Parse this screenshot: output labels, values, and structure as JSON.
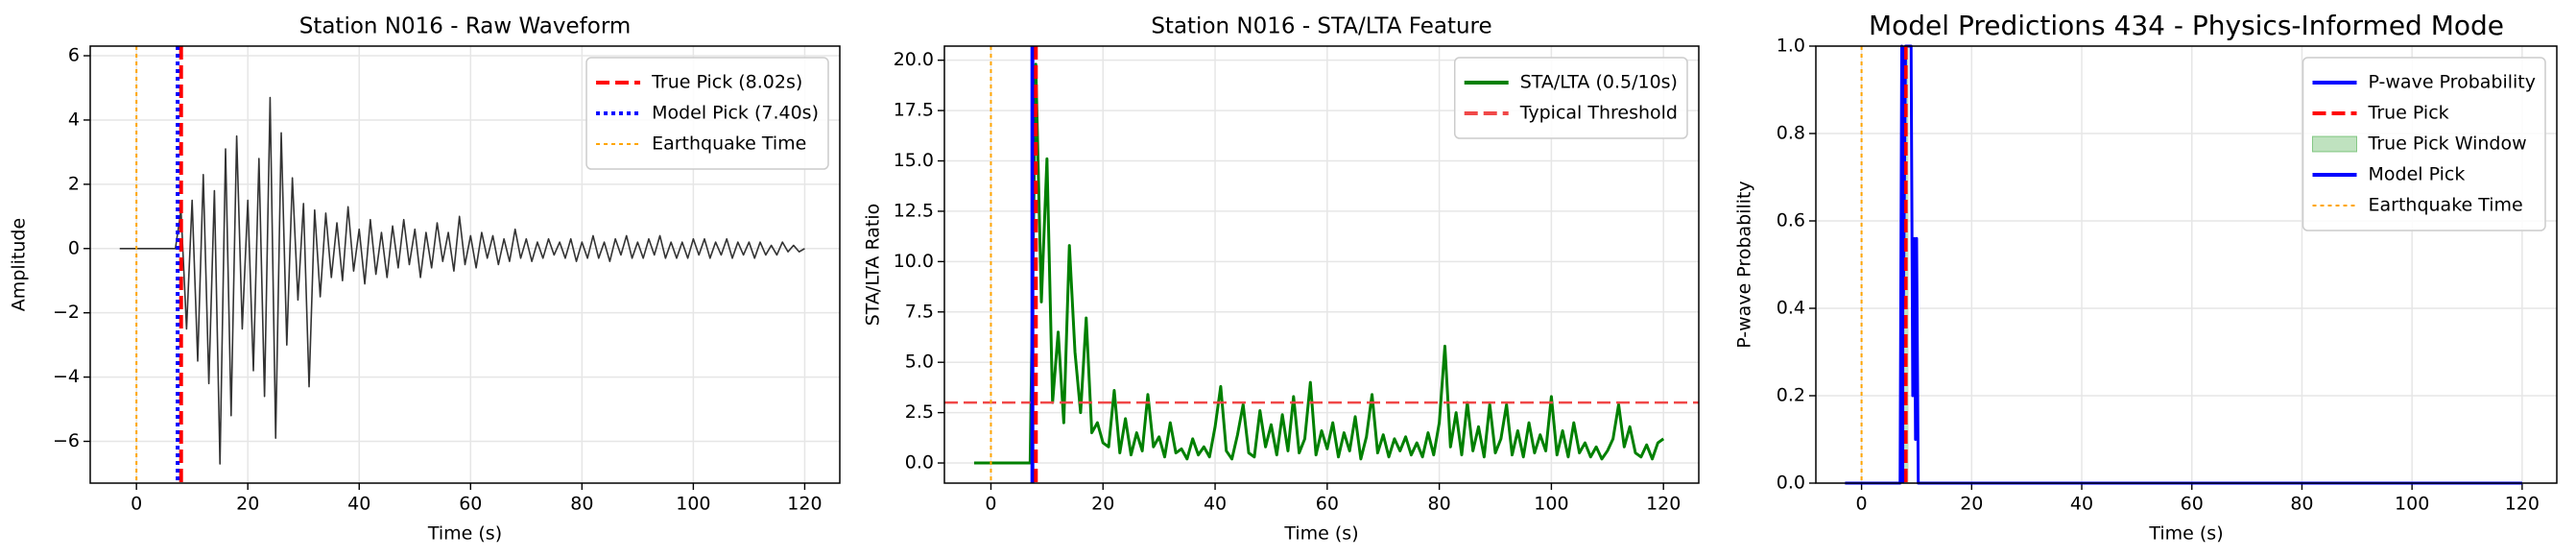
{
  "chart_data": [
    {
      "type": "line",
      "title": "Station N016 - Raw Waveform",
      "xlabel": "Time (s)",
      "ylabel": "Amplitude",
      "xlim": [
        -8.3,
        126.3
      ],
      "ylim": [
        -7.3,
        6.3
      ],
      "xticks": [
        0,
        20,
        40,
        60,
        80,
        100,
        120
      ],
      "yticks": [
        {
          "value": -6,
          "label": "−6"
        },
        {
          "value": -4,
          "label": "−4"
        },
        {
          "value": -2,
          "label": "−2"
        },
        0,
        2,
        4,
        6
      ],
      "grid": true,
      "legend": "upper right",
      "series": [
        {
          "color": "#333333",
          "x": [
            -3,
            -2,
            -1,
            0,
            1,
            2,
            3,
            4,
            5,
            6,
            7,
            8,
            9,
            10,
            11,
            12,
            13,
            14,
            15,
            16,
            17,
            18,
            19,
            20,
            21,
            22,
            23,
            24,
            25,
            26,
            27,
            28,
            29,
            30,
            31,
            32,
            33,
            34,
            35,
            36,
            37,
            38,
            39,
            40,
            41,
            42,
            43,
            44,
            45,
            46,
            47,
            48,
            49,
            50,
            51,
            52,
            53,
            54,
            55,
            56,
            57,
            58,
            59,
            60,
            61,
            62,
            63,
            64,
            65,
            66,
            67,
            68,
            69,
            70,
            71,
            72,
            73,
            74,
            75,
            76,
            77,
            78,
            79,
            80,
            81,
            82,
            83,
            84,
            85,
            86,
            87,
            88,
            89,
            90,
            91,
            92,
            93,
            94,
            95,
            96,
            97,
            98,
            99,
            100,
            101,
            102,
            103,
            104,
            105,
            106,
            107,
            108,
            109,
            110,
            111,
            112,
            113,
            114,
            115,
            116,
            117,
            118,
            119,
            120
          ],
          "values": [
            0,
            0,
            0,
            0,
            0,
            0,
            0,
            0,
            0,
            0,
            0,
            1.2,
            -2.5,
            1.5,
            -3.5,
            2.3,
            -4.2,
            1.8,
            -6.7,
            3.1,
            -5.2,
            3.5,
            -2.5,
            1.5,
            -3.8,
            2.8,
            -4.6,
            4.7,
            -5.9,
            3.6,
            -3.0,
            2.2,
            -1.6,
            1.4,
            -4.3,
            1.2,
            -1.5,
            1.1,
            -0.9,
            0.8,
            -1.0,
            1.3,
            -0.7,
            0.6,
            -1.1,
            0.9,
            -0.8,
            0.5,
            -0.9,
            0.7,
            -0.6,
            0.9,
            -0.5,
            0.6,
            -0.9,
            0.5,
            -0.6,
            0.8,
            -0.4,
            0.5,
            -0.7,
            1.0,
            -0.5,
            0.4,
            -0.6,
            0.5,
            -0.3,
            0.4,
            -0.5,
            0.3,
            -0.4,
            0.6,
            -0.3,
            0.3,
            -0.4,
            0.2,
            -0.3,
            0.3,
            -0.2,
            0.2,
            -0.3,
            0.3,
            -0.4,
            0.2,
            -0.3,
            0.4,
            -0.3,
            0.2,
            -0.4,
            0.3,
            -0.2,
            0.4,
            -0.3,
            0.2,
            -0.3,
            0.3,
            -0.2,
            0.4,
            -0.3,
            0.2,
            -0.3,
            0.2,
            -0.3,
            0.3,
            -0.2,
            0.3,
            -0.3,
            0.2,
            -0.2,
            0.3,
            -0.3,
            0.2,
            -0.2,
            0.2,
            -0.3,
            0.2,
            -0.2,
            0.1,
            -0.2,
            0.2,
            -0.1,
            0.1,
            -0.1,
            0
          ]
        }
      ],
      "marks": [
        {
          "kind": "vline",
          "x": 8.02,
          "name": "True Pick (8.02s)",
          "color": "#ff0000",
          "style": "dashed"
        },
        {
          "kind": "vline",
          "x": 7.4,
          "name": "Model Pick (7.40s)",
          "color": "#0000ff",
          "style": "dotted"
        },
        {
          "kind": "vline",
          "x": 0,
          "name": "Earthquake Time",
          "color": "orange",
          "style": "dotted"
        }
      ]
    },
    {
      "type": "line",
      "title": "Station N016 - STA/LTA Feature",
      "xlabel": "Time (s)",
      "ylabel": "STA/LTA Ratio",
      "xlim": [
        -8.3,
        126.3
      ],
      "ylim": [
        -1.0,
        20.7
      ],
      "xticks": [
        0,
        20,
        40,
        60,
        80,
        100,
        120
      ],
      "yticks": [
        {
          "value": 0,
          "label": "0.0"
        },
        {
          "value": 2.5,
          "label": "2.5"
        },
        {
          "value": 5,
          "label": "5.0"
        },
        {
          "value": 7.5,
          "label": "7.5"
        },
        {
          "value": 10,
          "label": "10.0"
        },
        {
          "value": 12.5,
          "label": "12.5"
        },
        {
          "value": 15,
          "label": "15.0"
        },
        {
          "value": 17.5,
          "label": "17.5"
        },
        {
          "value": 20,
          "label": "20.0"
        }
      ],
      "grid": true,
      "legend": "upper right",
      "series": [
        {
          "name": "STA/LTA (0.5/10s)",
          "color": "#008000",
          "x": [
            -3,
            -2,
            -1,
            0,
            1,
            2,
            3,
            4,
            5,
            6,
            7,
            8,
            9,
            10,
            11,
            12,
            13,
            14,
            15,
            16,
            17,
            18,
            19,
            20,
            21,
            22,
            23,
            24,
            25,
            26,
            27,
            28,
            29,
            30,
            31,
            32,
            33,
            34,
            35,
            36,
            37,
            38,
            39,
            40,
            41,
            42,
            43,
            44,
            45,
            46,
            47,
            48,
            49,
            50,
            51,
            52,
            53,
            54,
            55,
            56,
            57,
            58,
            59,
            60,
            61,
            62,
            63,
            64,
            65,
            66,
            67,
            68,
            69,
            70,
            71,
            72,
            73,
            74,
            75,
            76,
            77,
            78,
            79,
            80,
            81,
            82,
            83,
            84,
            85,
            86,
            87,
            88,
            89,
            90,
            91,
            92,
            93,
            94,
            95,
            96,
            97,
            98,
            99,
            100,
            101,
            102,
            103,
            104,
            105,
            106,
            107,
            108,
            109,
            110,
            111,
            112,
            113,
            114,
            115,
            116,
            117,
            118,
            119,
            120
          ],
          "values": [
            0,
            0,
            0,
            0,
            0,
            0,
            0,
            0,
            0,
            0,
            0,
            19.8,
            8.0,
            15.1,
            3.0,
            6.5,
            2.0,
            10.8,
            5.5,
            2.5,
            7.2,
            1.5,
            2.0,
            1.0,
            0.8,
            3.6,
            0.5,
            2.2,
            0.4,
            1.5,
            0.6,
            3.4,
            0.8,
            1.3,
            0.3,
            2.0,
            0.5,
            0.7,
            0.2,
            1.2,
            0.4,
            0.8,
            0.3,
            1.8,
            3.8,
            0.6,
            0.2,
            1.4,
            2.9,
            0.5,
            0.3,
            2.6,
            0.8,
            1.9,
            0.4,
            2.4,
            0.6,
            3.3,
            0.5,
            1.2,
            4.0,
            0.4,
            1.6,
            0.7,
            2.0,
            0.3,
            1.5,
            0.6,
            2.3,
            0.2,
            1.3,
            3.4,
            0.5,
            1.4,
            0.3,
            1.2,
            0.6,
            1.3,
            0.4,
            1.0,
            0.3,
            1.5,
            0.4,
            2.0,
            5.8,
            0.8,
            2.5,
            0.4,
            3.0,
            0.6,
            1.8,
            0.3,
            2.9,
            0.5,
            1.2,
            2.9,
            0.4,
            1.6,
            0.3,
            2.0,
            0.5,
            1.4,
            0.6,
            3.3,
            0.4,
            1.6,
            0.3,
            2.0,
            0.5,
            1.0,
            0.3,
            0.8,
            0.2,
            0.6,
            1.2,
            2.9,
            0.8,
            1.8,
            0.5,
            0.3,
            0.9,
            0.2,
            1.0,
            1.2
          ]
        }
      ],
      "marks": [
        {
          "kind": "hline",
          "y": 3.0,
          "name": "Typical Threshold",
          "color": "#f04848",
          "style": "dashed"
        },
        {
          "kind": "vline",
          "x": 7.4,
          "color": "#0000ff",
          "style": "solid"
        },
        {
          "kind": "vline",
          "x": 8.02,
          "color": "#ff0000",
          "style": "dashed"
        },
        {
          "kind": "vline",
          "x": 0,
          "color": "orange",
          "style": "dotted"
        }
      ]
    },
    {
      "type": "line",
      "title": "Model Predictions 434 - Physics-Informed Mode",
      "xlabel": "Time (s)",
      "ylabel": "P-wave Probability",
      "xlim": [
        -8.3,
        126.3
      ],
      "ylim": [
        0,
        1
      ],
      "xticks": [
        0,
        20,
        40,
        60,
        80,
        100,
        120
      ],
      "yticks": [
        {
          "value": 0,
          "label": "0.0"
        },
        {
          "value": 0.2,
          "label": "0.2"
        },
        {
          "value": 0.4,
          "label": "0.4"
        },
        {
          "value": 0.6,
          "label": "0.6"
        },
        {
          "value": 0.8,
          "label": "0.8"
        },
        {
          "value": 1,
          "label": "1.0"
        }
      ],
      "grid": true,
      "legend": "upper right",
      "series": [
        {
          "name": "P-wave Probability",
          "color": "#0000ff",
          "x": [
            -3,
            7,
            7.3,
            7.6,
            8,
            8.5,
            9,
            9.3,
            9.6,
            9.8,
            10,
            10.3,
            11,
            120
          ],
          "values": [
            0,
            0,
            1,
            0.4,
            1,
            1,
            1,
            0.2,
            0.56,
            0.1,
            0.56,
            0,
            0,
            0
          ]
        }
      ],
      "marks": [
        {
          "kind": "vline",
          "x": 8.02,
          "name": "True Pick",
          "color": "#ff0000",
          "style": "dashed"
        },
        {
          "kind": "span",
          "x": [
            7.52,
            8.52
          ],
          "name": "True Pick Window",
          "color": "#2ca02c"
        },
        {
          "kind": "vline",
          "x": 7.4,
          "name": "Model Pick",
          "color": "#0000ff",
          "style": "solid"
        },
        {
          "kind": "vline",
          "x": 0,
          "name": "Earthquake Time",
          "color": "orange",
          "style": "dotted"
        }
      ]
    }
  ]
}
